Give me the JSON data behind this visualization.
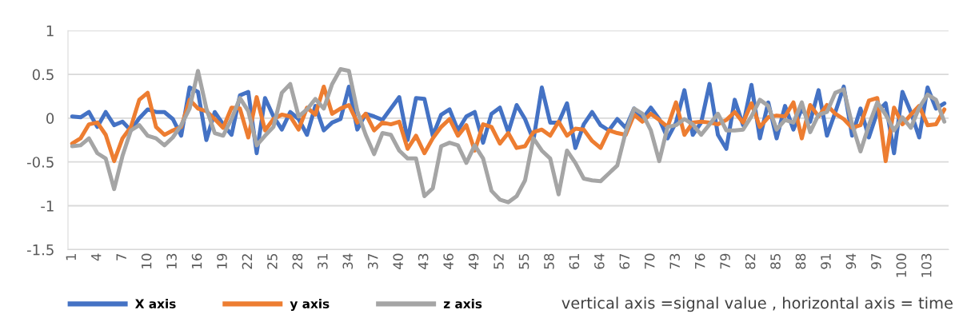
{
  "chart_data": {
    "type": "line",
    "categories": [
      "1",
      null,
      null,
      "4",
      null,
      null,
      "7",
      null,
      null,
      "10",
      null,
      null,
      "13",
      null,
      null,
      "16",
      null,
      null,
      "19",
      null,
      null,
      "22",
      null,
      null,
      "25",
      null,
      null,
      "28",
      null,
      null,
      "31",
      null,
      null,
      "34",
      null,
      null,
      "37",
      null,
      null,
      "40",
      null,
      null,
      "43",
      null,
      null,
      "46",
      null,
      null,
      "49",
      null,
      null,
      "52",
      null,
      null,
      "55",
      null,
      null,
      "58",
      null,
      null,
      "61",
      null,
      null,
      "64",
      null,
      null,
      "67",
      null,
      null,
      "70",
      null,
      null,
      "73",
      null,
      null,
      "76",
      null,
      null,
      "79",
      null,
      null,
      "82",
      null,
      null,
      "85",
      null,
      null,
      "88",
      null,
      null,
      "91",
      null,
      null,
      "94",
      null,
      null,
      "97",
      null,
      null,
      "100",
      null,
      null,
      "103",
      null,
      null
    ],
    "series": [
      {
        "name": "X axis",
        "color": "#4472c4",
        "values": [
          0.02,
          0.01,
          0.07,
          -0.1,
          0.07,
          -0.08,
          -0.04,
          -0.14,
          0.0,
          0.1,
          0.07,
          0.07,
          -0.01,
          -0.2,
          0.35,
          0.3,
          -0.25,
          0.07,
          -0.07,
          -0.19,
          0.26,
          0.3,
          -0.4,
          0.23,
          0.02,
          -0.13,
          0.07,
          -0.01,
          -0.19,
          0.14,
          -0.14,
          -0.05,
          -0.01,
          0.36,
          -0.13,
          0.05,
          0.02,
          -0.02,
          0.11,
          0.24,
          -0.25,
          0.23,
          0.22,
          -0.2,
          0.04,
          0.1,
          -0.14,
          0.02,
          0.07,
          -0.28,
          0.05,
          0.12,
          -0.16,
          0.15,
          -0.01,
          -0.25,
          0.35,
          -0.05,
          -0.05,
          0.17,
          -0.34,
          -0.07,
          0.07,
          -0.08,
          -0.14,
          -0.01,
          -0.11,
          0.11,
          -0.01,
          0.12,
          -0.01,
          -0.23,
          -0.05,
          0.32,
          -0.19,
          -0.05,
          0.39,
          -0.19,
          -0.35,
          0.21,
          -0.08,
          0.38,
          -0.23,
          0.18,
          -0.23,
          0.14,
          -0.13,
          0.11,
          -0.04,
          0.32,
          -0.2,
          0.07,
          0.36,
          -0.2,
          0.11,
          -0.22,
          0.07,
          0.17,
          -0.4,
          0.3,
          0.07,
          -0.22,
          0.35,
          0.11,
          0.17
        ]
      },
      {
        "name": "y axis",
        "color": "#ed7d31",
        "values": [
          -0.29,
          -0.23,
          -0.07,
          -0.05,
          -0.19,
          -0.49,
          -0.23,
          -0.1,
          0.21,
          0.29,
          -0.1,
          -0.19,
          -0.14,
          -0.1,
          0.21,
          0.11,
          0.08,
          -0.01,
          -0.11,
          0.12,
          0.11,
          -0.22,
          0.24,
          -0.14,
          -0.01,
          0.04,
          0.02,
          -0.13,
          0.12,
          0.04,
          0.36,
          0.05,
          0.11,
          0.15,
          -0.05,
          0.05,
          -0.14,
          -0.05,
          -0.07,
          -0.04,
          -0.35,
          -0.2,
          -0.4,
          -0.23,
          -0.1,
          -0.01,
          -0.2,
          -0.08,
          -0.37,
          -0.07,
          -0.1,
          -0.29,
          -0.17,
          -0.34,
          -0.32,
          -0.16,
          -0.13,
          -0.2,
          -0.04,
          -0.2,
          -0.12,
          -0.13,
          -0.26,
          -0.34,
          -0.14,
          -0.17,
          -0.19,
          0.04,
          -0.04,
          0.05,
          -0.02,
          -0.1,
          0.18,
          -0.19,
          -0.05,
          -0.04,
          -0.05,
          -0.07,
          -0.02,
          0.07,
          -0.05,
          0.17,
          -0.1,
          0.01,
          0.03,
          0.02,
          0.18,
          -0.23,
          0.15,
          0.02,
          0.15,
          0.05,
          -0.01,
          -0.11,
          -0.08,
          0.2,
          0.23,
          -0.49,
          0.12,
          -0.07,
          0.04,
          0.14,
          -0.08,
          -0.07,
          0.1
        ]
      },
      {
        "name": "z axis",
        "color": "#a5a5a5",
        "values": [
          -0.32,
          -0.31,
          -0.23,
          -0.4,
          -0.46,
          -0.81,
          -0.43,
          -0.14,
          -0.08,
          -0.2,
          -0.23,
          -0.31,
          -0.22,
          -0.08,
          0.11,
          0.54,
          0.11,
          -0.17,
          -0.2,
          -0.01,
          0.23,
          0.08,
          -0.31,
          -0.2,
          -0.1,
          0.29,
          0.39,
          0.02,
          0.1,
          0.22,
          0.11,
          0.39,
          0.56,
          0.54,
          0.08,
          -0.19,
          -0.41,
          -0.17,
          -0.19,
          -0.37,
          -0.46,
          -0.46,
          -0.89,
          -0.8,
          -0.32,
          -0.28,
          -0.31,
          -0.51,
          -0.31,
          -0.46,
          -0.83,
          -0.93,
          -0.96,
          -0.89,
          -0.71,
          -0.23,
          -0.37,
          -0.46,
          -0.87,
          -0.37,
          -0.51,
          -0.69,
          -0.71,
          -0.72,
          -0.63,
          -0.54,
          -0.16,
          0.11,
          0.05,
          -0.14,
          -0.49,
          -0.1,
          -0.08,
          -0.01,
          -0.07,
          -0.19,
          -0.07,
          0.05,
          -0.14,
          -0.14,
          -0.13,
          0.02,
          0.21,
          0.14,
          -0.13,
          -0.02,
          -0.05,
          0.18,
          -0.16,
          0.04,
          0.07,
          0.29,
          0.33,
          -0.07,
          -0.38,
          -0.08,
          0.18,
          0.04,
          -0.14,
          0.01,
          -0.11,
          0.12,
          0.27,
          0.21,
          -0.04
        ]
      }
    ],
    "ylim": [
      -1.5,
      1
    ],
    "yticks": [
      -1.5,
      -1,
      -0.5,
      0,
      0.5,
      1
    ],
    "grid": "y",
    "legend": "bottom left",
    "marker": "none",
    "line_style": "solid",
    "annotations": [
      "vertical axis =signal value , horizontal axis = time"
    ]
  }
}
